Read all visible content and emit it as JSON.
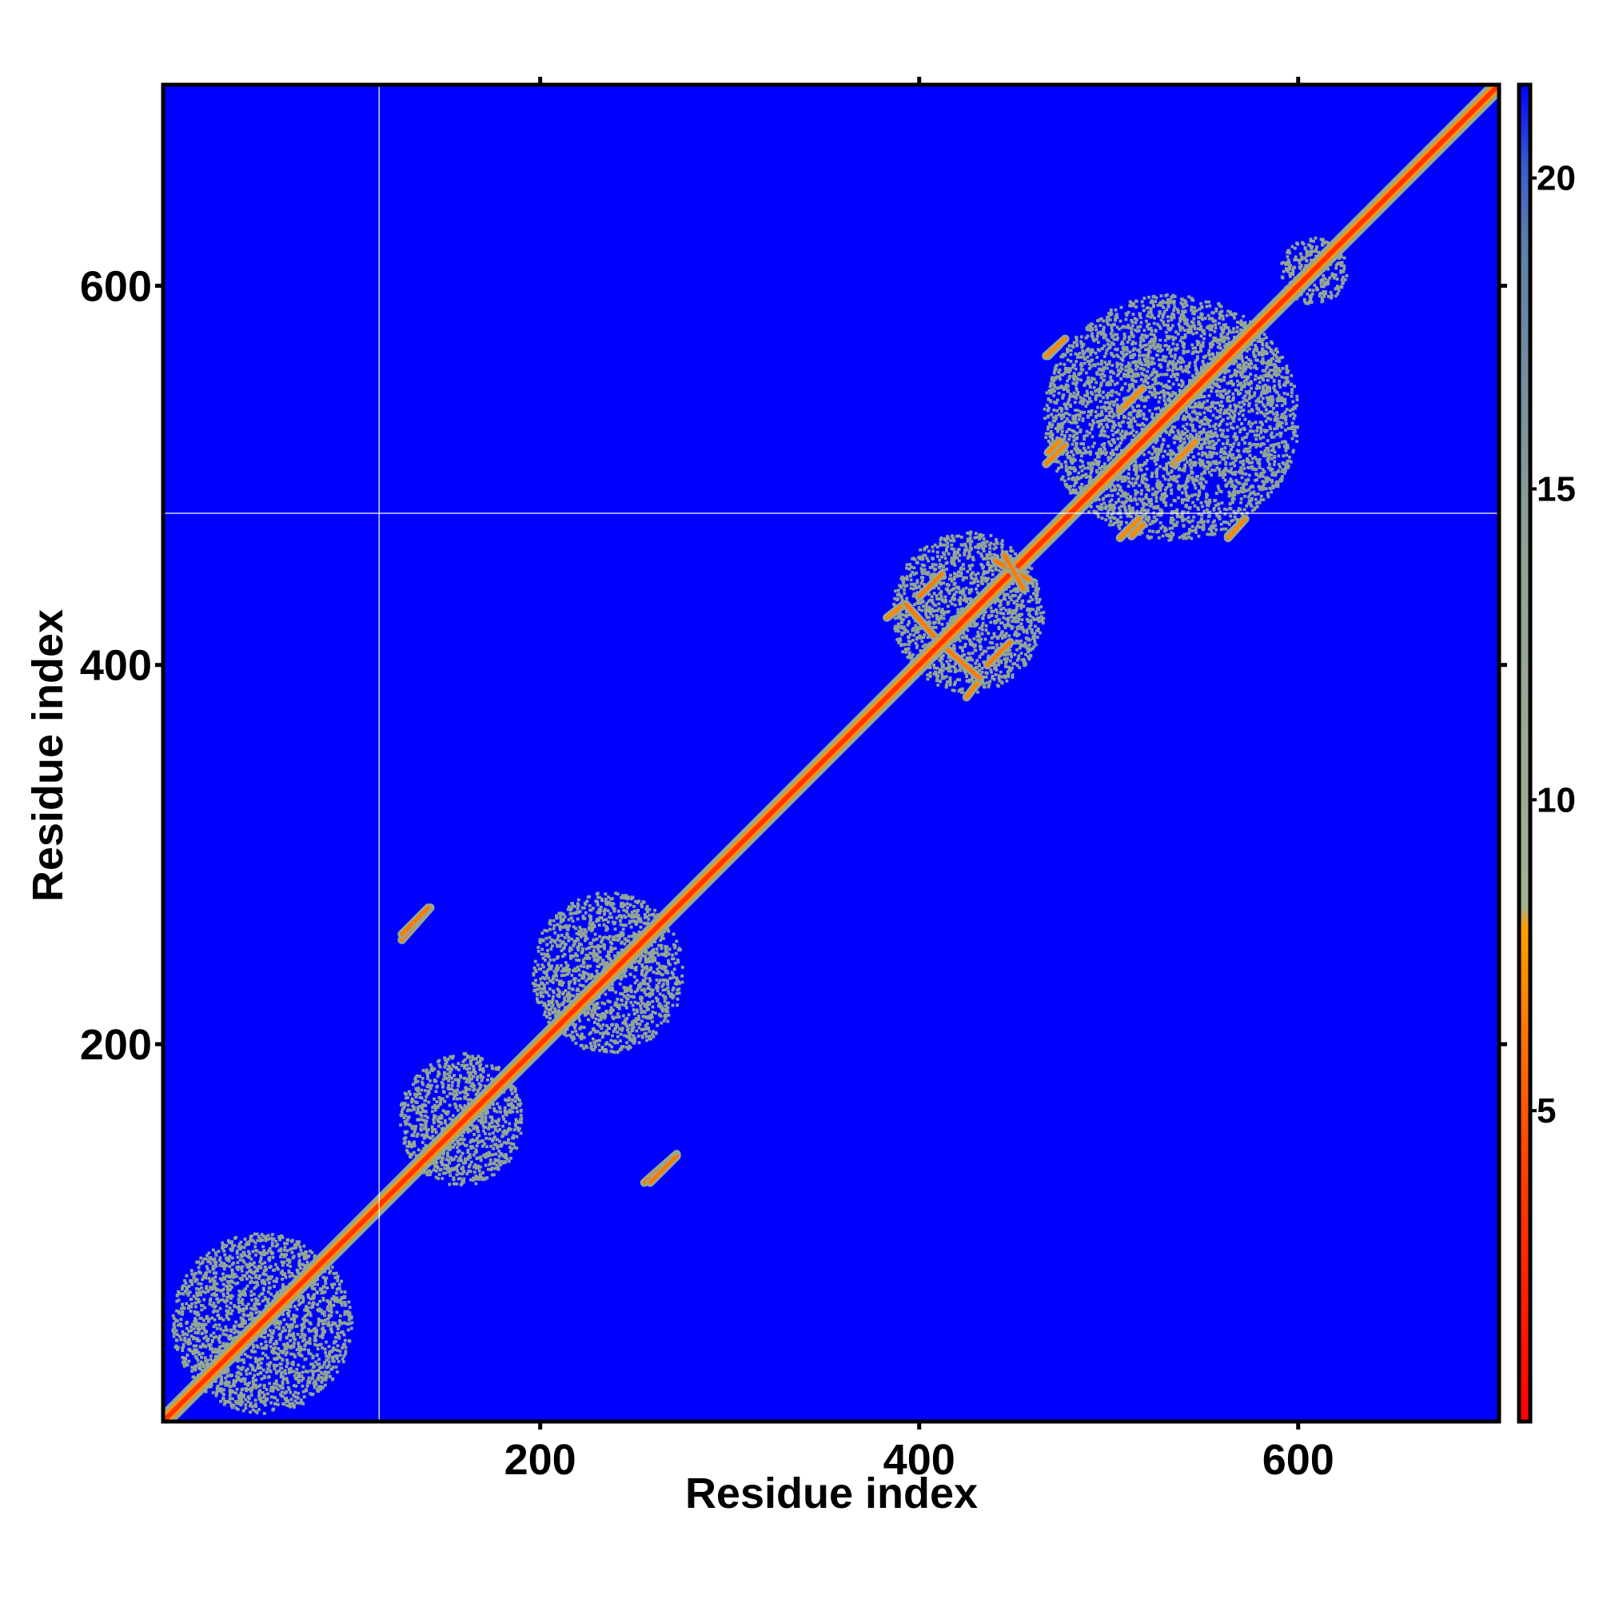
{
  "chart_data": {
    "type": "heatmap",
    "title": "",
    "xlabel": "Residue index",
    "ylabel": "Residue index",
    "xlim": [
      1,
      706
    ],
    "ylim": [
      1,
      706
    ],
    "x_ticks": [
      200,
      400,
      600
    ],
    "y_ticks": [
      200,
      400,
      600
    ],
    "colorbar": {
      "range": [
        0,
        21.5
      ],
      "ticks": [
        5,
        10,
        15,
        20
      ],
      "color_stops": [
        {
          "value": 0,
          "color": "#ff0000"
        },
        {
          "value": 4.0,
          "color": "#ff3b00"
        },
        {
          "value": 8.0,
          "color": "#ffa000"
        },
        {
          "value": 8.3,
          "color": "#a3b08f"
        },
        {
          "value": 14.0,
          "color": "#8ea395"
        },
        {
          "value": 19.0,
          "color": "#5f7fa8"
        },
        {
          "value": 20.3,
          "color": "#3a5bd0"
        },
        {
          "value": 21.5,
          "color": "#0000ff"
        }
      ]
    },
    "background_color": "#0000ff",
    "missing_residue_line": 115,
    "diagonal": {
      "from": 1,
      "to": 706,
      "value": 3.8
    },
    "contact_regions": [
      {
        "x_range": [
          5,
          100
        ],
        "y_range": [
          5,
          100
        ],
        "value": 11.0
      },
      {
        "x_range": [
          125,
          190
        ],
        "y_range": [
          125,
          195
        ],
        "value": 11.0
      },
      {
        "x_range": [
          195,
          275
        ],
        "y_range": [
          195,
          280
        ],
        "value": 11.0
      },
      {
        "x_range": [
          385,
          465
        ],
        "y_range": [
          385,
          470
        ],
        "value": 11.0
      },
      {
        "x_range": [
          465,
          600
        ],
        "y_range": [
          465,
          595
        ],
        "value": 11.0
      },
      {
        "x_range": [
          590,
          625
        ],
        "y_range": [
          590,
          625
        ],
        "value": 11.0
      }
    ],
    "strands": [
      {
        "x": [
          127,
          142
        ],
        "y": [
          255,
          272
        ],
        "value": 6.5
      },
      {
        "x": [
          258,
          272
        ],
        "y": [
          127,
          141
        ],
        "value": 6.5
      },
      {
        "x": [
          383,
          392
        ],
        "y": [
          425,
          432
        ],
        "value": 7.0
      },
      {
        "x": [
          415,
          432
        ],
        "y": [
          408,
          393
        ],
        "value": 6.5
      },
      {
        "x": [
          440,
          458
        ],
        "y": [
          455,
          445
        ],
        "value": 6.5
      },
      {
        "x": [
          436,
          448
        ],
        "y": [
          400,
          412
        ],
        "value": 6.5
      },
      {
        "x": [
          468,
          474
        ],
        "y": [
          563,
          569
        ],
        "value": 7.0
      },
      {
        "x": [
          468,
          474
        ],
        "y": [
          512,
          518
        ],
        "value": 7.0
      },
      {
        "x": [
          506,
          516
        ],
        "y": [
          467,
          477
        ],
        "value": 7.0
      },
      {
        "x": [
          506,
          516
        ],
        "y": [
          534,
          544
        ],
        "value": 7.0
      },
      {
        "x": [
          536,
          546
        ],
        "y": [
          508,
          518
        ],
        "value": 7.0
      },
      {
        "x": [
          563,
          572
        ],
        "y": [
          467,
          477
        ],
        "value": 7.0
      }
    ],
    "colorbar_ticks_text": [
      "5",
      "10",
      "15",
      "20"
    ]
  },
  "axes": {
    "x_tick_labels": [
      "200",
      "400",
      "600"
    ],
    "y_tick_labels": [
      "200",
      "400",
      "600"
    ],
    "xlabel": "Residue index",
    "ylabel": "Residue index"
  },
  "colorbar_labels": [
    "5",
    "10",
    "15",
    "20"
  ]
}
